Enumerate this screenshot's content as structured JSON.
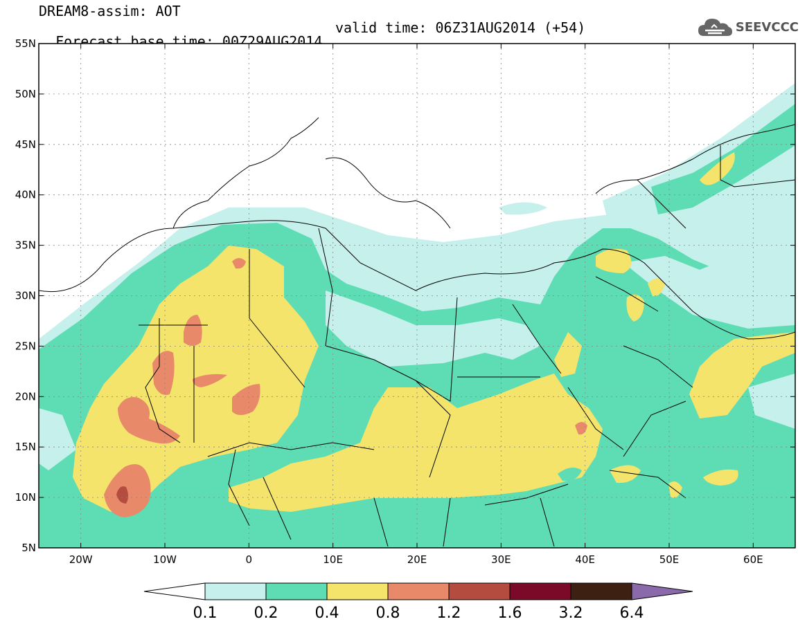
{
  "header": {
    "title_line1": "DREAM8-assim: AOT",
    "title_line2": "Forecast base time: 00Z29AUG2014",
    "valid_time": "valid time: 06Z31AUG2014 (+54)"
  },
  "logo": {
    "text": "SEEVCCC",
    "icon": "cloud-icon"
  },
  "map": {
    "lon_range": [
      -25,
      65
    ],
    "lat_range": [
      5,
      55
    ],
    "lat_labels": [
      "55N",
      "50N",
      "45N",
      "40N",
      "35N",
      "30N",
      "25N",
      "20N",
      "15N",
      "10N",
      "5N"
    ],
    "lon_labels": [
      "20W",
      "10W",
      "0",
      "10E",
      "20E",
      "30E",
      "40E",
      "50E",
      "60E"
    ]
  },
  "colorbar": {
    "labels": [
      "0.1",
      "0.2",
      "0.4",
      "0.8",
      "1.2",
      "1.6",
      "3.2",
      "6.4"
    ],
    "colors": [
      "#ffffff",
      "#c5f0ec",
      "#5edcb4",
      "#f4e46c",
      "#e8896a",
      "#b44c3f",
      "#7a0a28",
      "#3e2012",
      "#8a6aaa"
    ]
  },
  "palette": {
    "l1": "#c5f0ec",
    "l2": "#5edcb4",
    "l3": "#f4e46c",
    "l4": "#e8896a",
    "l5": "#b44c3f",
    "l6": "#7a0a28"
  }
}
